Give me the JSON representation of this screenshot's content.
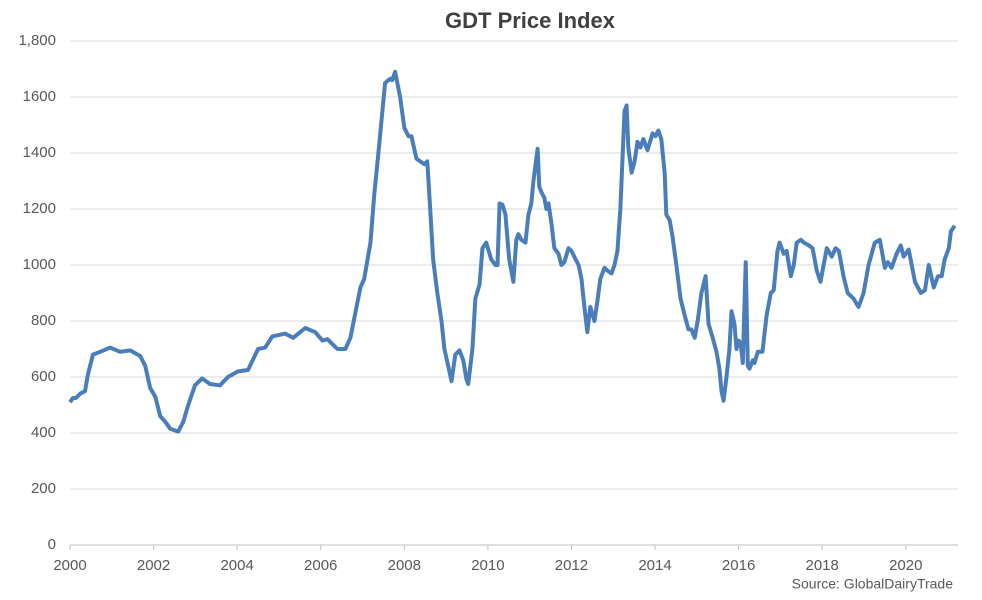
{
  "chart_data": {
    "type": "line",
    "title": "GDT Price Index",
    "source": "Source: GlobalDairyTrade",
    "xlim": [
      2000,
      2021.25
    ],
    "xticks": [
      2000,
      2002,
      2004,
      2006,
      2008,
      2010,
      2012,
      2014,
      2016,
      2018,
      2020
    ],
    "ylim": [
      0,
      1800
    ],
    "yticks": [
      0,
      200,
      400,
      600,
      800,
      1000,
      1200,
      1400,
      1600,
      {
        "value": 1800,
        "label": "1,800"
      }
    ],
    "grid": true,
    "series": [
      {
        "color": "#4a7ebb",
        "x": [
          2000,
          2000.07,
          2000.14,
          2000.24,
          2000.36,
          2000.43,
          2000.55,
          2000.72,
          2000.96,
          2001.2,
          2001.44,
          2001.68,
          2001.8,
          2001.92,
          2002.04,
          2002.16,
          2002.28,
          2002.4,
          2002.59,
          2002.71,
          2002.83,
          2002.99,
          2003.16,
          2003.35,
          2003.59,
          2003.78,
          2004.02,
          2004.26,
          2004.5,
          2004.67,
          2004.84,
          2005.15,
          2005.34,
          2005.63,
          2005.87,
          2006.04,
          2006.16,
          2006.4,
          2006.59,
          2006.71,
          2006.83,
          2006.95,
          2007.04,
          2007.19,
          2007.28,
          2007.38,
          2007.54,
          2007.66,
          2007.71,
          2007.78,
          2007.9,
          2008.0,
          2008.1,
          2008.17,
          2008.29,
          2008.48,
          2008.55,
          2008.62,
          2008.69,
          2008.79,
          2008.89,
          2008.96,
          2009.05,
          2009.13,
          2009.22,
          2009.32,
          2009.41,
          2009.49,
          2009.53,
          2009.63,
          2009.7,
          2009.8,
          2009.87,
          2009.96,
          2010.08,
          2010.18,
          2010.23,
          2010.28,
          2010.35,
          2010.42,
          2010.51,
          2010.61,
          2010.68,
          2010.73,
          2010.8,
          2010.9,
          2010.97,
          2011.04,
          2011.09,
          2011.19,
          2011.23,
          2011.28,
          2011.35,
          2011.4,
          2011.45,
          2011.52,
          2011.59,
          2011.69,
          2011.76,
          2011.83,
          2011.93,
          2012.0,
          2012.1,
          2012.17,
          2012.24,
          2012.31,
          2012.38,
          2012.45,
          2012.55,
          2012.62,
          2012.69,
          2012.79,
          2012.86,
          2012.96,
          2013.03,
          2013.1,
          2013.17,
          2013.27,
          2013.32,
          2013.36,
          2013.44,
          2013.51,
          2013.58,
          2013.65,
          2013.72,
          2013.82,
          2013.94,
          2014.01,
          2014.08,
          2014.15,
          2014.23,
          2014.27,
          2014.35,
          2014.42,
          2014.51,
          2014.61,
          2014.71,
          2014.8,
          2014.87,
          2014.95,
          2015.02,
          2015.11,
          2015.21,
          2015.28,
          2015.38,
          2015.47,
          2015.54,
          2015.59,
          2015.64,
          2015.71,
          2015.78,
          2015.83,
          2015.9,
          2015.95,
          2016.0,
          2016.05,
          2016.1,
          2016.17,
          2016.22,
          2016.26,
          2016.34,
          2016.38,
          2016.46,
          2016.57,
          2016.67,
          2016.77,
          2016.84,
          2016.93,
          2016.98,
          2017.08,
          2017.15,
          2017.25,
          2017.32,
          2017.39,
          2017.49,
          2017.56,
          2017.68,
          2017.77,
          2017.87,
          2017.96,
          2018.11,
          2018.23,
          2018.32,
          2018.4,
          2018.51,
          2018.61,
          2018.75,
          2018.87,
          2018.99,
          2019.11,
          2019.26,
          2019.38,
          2019.5,
          2019.57,
          2019.66,
          2019.78,
          2019.88,
          2019.95,
          2020.07,
          2020.22,
          2020.36,
          2020.46,
          2020.55,
          2020.67,
          2020.77,
          2020.86,
          2020.93,
          2021.03,
          2021.08,
          2021.17
        ],
        "values": [
          510,
          525,
          525,
          540,
          550,
          610,
          680,
          690,
          705,
          690,
          695,
          675,
          640,
          560,
          530,
          460,
          440,
          415,
          405,
          440,
          500,
          570,
          595,
          575,
          570,
          600,
          620,
          625,
          700,
          705,
          745,
          755,
          740,
          775,
          760,
          730,
          735,
          700,
          700,
          740,
          830,
          920,
          950,
          1080,
          1250,
          1400,
          1650,
          1665,
          1660,
          1690,
          1600,
          1490,
          1460,
          1460,
          1380,
          1360,
          1370,
          1200,
          1020,
          900,
          800,
          700,
          640,
          585,
          680,
          695,
          660,
          590,
          575,
          700,
          880,
          930,
          1060,
          1080,
          1020,
          1000,
          1000,
          1220,
          1215,
          1180,
          1020,
          940,
          1090,
          1110,
          1090,
          1080,
          1180,
          1220,
          1300,
          1415,
          1280,
          1260,
          1240,
          1200,
          1220,
          1150,
          1060,
          1040,
          1000,
          1010,
          1060,
          1050,
          1020,
          1000,
          950,
          850,
          760,
          850,
          800,
          870,
          950,
          990,
          980,
          970,
          1000,
          1050,
          1200,
          1550,
          1570,
          1420,
          1330,
          1370,
          1440,
          1420,
          1450,
          1410,
          1470,
          1460,
          1480,
          1450,
          1330,
          1180,
          1160,
          1100,
          1000,
          880,
          820,
          770,
          770,
          740,
          800,
          900,
          960,
          790,
          740,
          690,
          630,
          550,
          515,
          600,
          700,
          835,
          790,
          700,
          730,
          720,
          650,
          1010,
          640,
          630,
          660,
          650,
          690,
          690,
          820,
          900,
          910,
          1050,
          1080,
          1040,
          1050,
          960,
          1000,
          1080,
          1090,
          1080,
          1070,
          1060,
          980,
          940,
          1060,
          1030,
          1060,
          1050,
          960,
          900,
          880,
          850,
          900,
          1000,
          1080,
          1090,
          990,
          1010,
          990,
          1040,
          1070,
          1030,
          1055,
          940,
          900,
          910,
          1000,
          920,
          960,
          960,
          1020,
          1060,
          1120,
          1140
        ]
      }
    ]
  }
}
